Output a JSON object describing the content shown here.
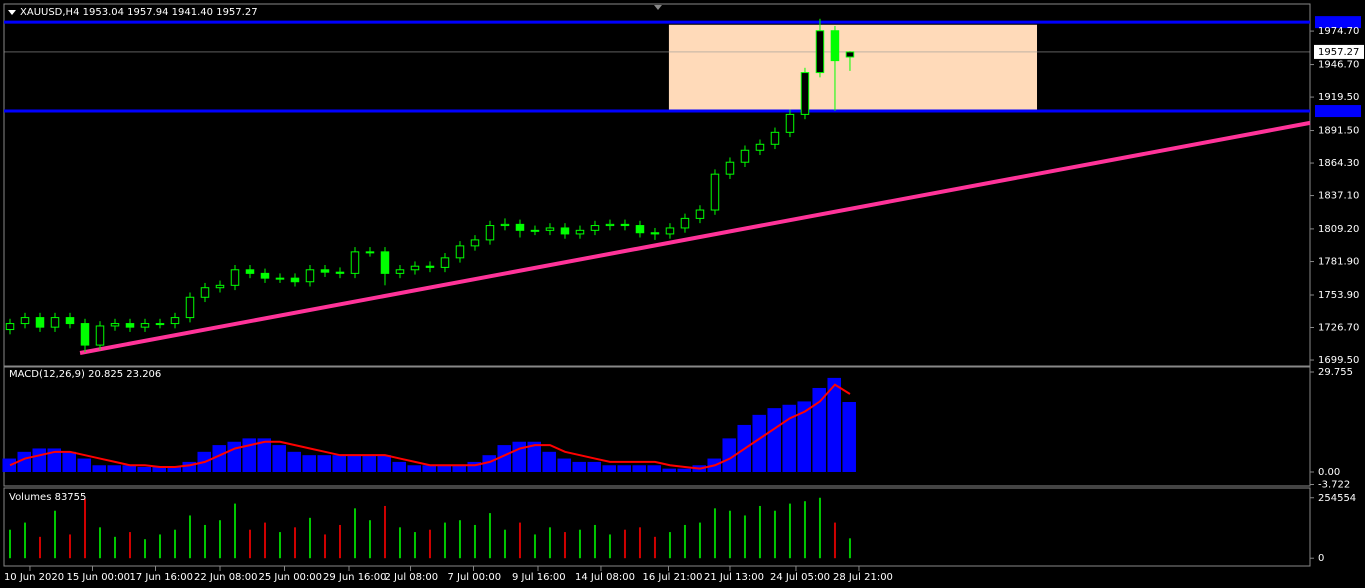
{
  "chart_data": [
    {
      "type": "candlestick",
      "title": "XAUUSD,H4  1953.04 1957.94 1941.40 1957.27",
      "color": "#00ff00",
      "open": [
        1725,
        1730,
        1735,
        1727,
        1735,
        1730,
        1712,
        1728,
        1730,
        1727,
        1730,
        1730,
        1735,
        1752,
        1760,
        1762,
        1775,
        1772,
        1768,
        1768,
        1765,
        1775,
        1773,
        1772,
        1790,
        1790,
        1772,
        1775,
        1778,
        1777,
        1785,
        1795,
        1800,
        1812,
        1813,
        1808,
        1808,
        1810,
        1805,
        1808,
        1812,
        1813,
        1812,
        1806,
        1805,
        1810,
        1818,
        1825,
        1855,
        1865,
        1875,
        1880,
        1890,
        1905,
        1940,
        1975,
        1953.04
      ],
      "high": [
        1734,
        1739,
        1739,
        1739,
        1739,
        1734,
        1732,
        1734,
        1734,
        1734,
        1734,
        1739,
        1756,
        1764,
        1766,
        1779,
        1779,
        1776,
        1772,
        1772,
        1779,
        1779,
        1777,
        1794,
        1794,
        1794,
        1779,
        1782,
        1782,
        1789,
        1799,
        1804,
        1816,
        1818,
        1817,
        1812,
        1814,
        1814,
        1812,
        1816,
        1817,
        1817,
        1816,
        1810,
        1814,
        1822,
        1829,
        1859,
        1869,
        1879,
        1884,
        1894,
        1909,
        1944,
        1985,
        1979,
        1957.94
      ],
      "low": [
        1721,
        1726,
        1723,
        1723,
        1726,
        1706,
        1708,
        1724,
        1723,
        1723,
        1726,
        1726,
        1731,
        1748,
        1756,
        1758,
        1768,
        1764,
        1764,
        1761,
        1761,
        1769,
        1768,
        1768,
        1786,
        1762,
        1768,
        1771,
        1773,
        1773,
        1781,
        1791,
        1796,
        1808,
        1802,
        1804,
        1804,
        1801,
        1801,
        1804,
        1808,
        1808,
        1802,
        1800,
        1801,
        1806,
        1814,
        1821,
        1851,
        1861,
        1871,
        1876,
        1886,
        1901,
        1936,
        1908,
        1941.4
      ],
      "close": [
        1730,
        1735,
        1727,
        1735,
        1730,
        1712,
        1728,
        1730,
        1727,
        1730,
        1730,
        1735,
        1752,
        1760,
        1762,
        1775,
        1772,
        1768,
        1768,
        1765,
        1775,
        1773,
        1772,
        1790,
        1790,
        1772,
        1775,
        1778,
        1777,
        1785,
        1795,
        1800,
        1812,
        1813,
        1808,
        1808,
        1810,
        1805,
        1808,
        1812,
        1813,
        1812,
        1806,
        1805,
        1810,
        1818,
        1825,
        1855,
        1865,
        1875,
        1880,
        1890,
        1905,
        1940,
        1975,
        1950,
        1957.27
      ],
      "xlim": [
        -0.4,
        86.67
      ],
      "ylim": [
        1694.5,
        1989
      ],
      "xticks": [
        {
          "value": 1.33,
          "label": "10 Jun 2020"
        },
        {
          "value": 5.5,
          "label": "15 Jun 00:00"
        },
        {
          "value": 9.7,
          "label": "17 Jun 16:00"
        },
        {
          "value": 14,
          "label": "22 Jun 08:00"
        },
        {
          "value": 18.3,
          "label": "25 Jun 00:00"
        },
        {
          "value": 22.6,
          "label": "29 Jun 16:00"
        },
        {
          "value": 26.7,
          "label": "2 Jul 08:00"
        },
        {
          "value": 30.9,
          "label": "7 Jul 00:00"
        },
        {
          "value": 35.2,
          "label": "9 Jul 16:00"
        },
        {
          "value": 39.4,
          "label": "14 Jul 08:00"
        },
        {
          "value": 43.9,
          "label": "16 Jul 21:00"
        },
        {
          "value": 48,
          "label": "21 Jul 13:00"
        },
        {
          "value": 52.4,
          "label": "24 Jul 05:00"
        },
        {
          "value": 56.6,
          "label": "28 Jul 21:00"
        }
      ],
      "yticks": [
        {
          "value": 1699.5,
          "label": "1699.50"
        },
        {
          "value": 1726.7,
          "label": "1726.70"
        },
        {
          "value": 1753.9,
          "label": "1753.90"
        },
        {
          "value": 1781.9,
          "label": "1781.90"
        },
        {
          "value": 1809.2,
          "label": "1809.20"
        },
        {
          "value": 1837.1,
          "label": "1837.10"
        },
        {
          "value": 1864.3,
          "label": "1864.30"
        },
        {
          "value": 1891.5,
          "label": "1891.50"
        },
        {
          "value": 1919.5,
          "label": "1919.50"
        },
        {
          "value": 1946.7,
          "label": "1946.70"
        },
        {
          "value": 1974.7,
          "label": "1974.70"
        }
      ],
      "levels": [
        1982.2,
        1907.8
      ],
      "level_color": "#0000ff",
      "zone": {
        "x": [
          43.93,
          68.47
        ],
        "y": [
          1908.6,
          1980
        ],
        "color": "#ffdab9"
      },
      "trendline": {
        "x": [
          4.67,
          86.67
        ],
        "y": [
          1705.4,
          1897.9
        ],
        "color": "#ff3399"
      }
    },
    {
      "type": "macd",
      "title": "MACD(12,26,9) 20.825 23.206",
      "series": [
        {
          "color": "#0000ff",
          "values": [
            4,
            6,
            7,
            7,
            6,
            4,
            2,
            2,
            2,
            1.5,
            1.5,
            1.5,
            3,
            6,
            8,
            9,
            10,
            10,
            8,
            6,
            5,
            5,
            5,
            5,
            5,
            5,
            3,
            2,
            2,
            2,
            2,
            3,
            5,
            8,
            9,
            9,
            6,
            4,
            3,
            3,
            2,
            2,
            2,
            2,
            1,
            1,
            2,
            4,
            10,
            14,
            17,
            19,
            20,
            21,
            25,
            28,
            20.825
          ]
        },
        {
          "color": "#ff0000",
          "values": [
            2,
            4,
            5,
            6,
            6,
            5,
            4,
            3,
            2,
            2,
            1.5,
            1.5,
            2,
            3,
            5,
            7,
            8,
            9,
            9,
            8,
            7,
            6,
            5,
            5,
            5,
            5,
            4,
            3,
            2,
            2,
            2,
            2,
            3,
            5,
            7,
            8,
            8,
            6,
            5,
            4,
            3,
            3,
            3,
            3,
            2,
            1.5,
            1,
            2,
            4,
            7,
            10,
            13,
            16,
            18,
            21,
            26,
            23.206
          ]
        }
      ],
      "ylim": [
        -4.17,
        31.24
      ],
      "yticks": [
        29.755,
        {
          "value": 0,
          "label": "0.00"
        },
        -3.722
      ]
    },
    {
      "type": "volume",
      "title": "Volumes 83755",
      "up_color": "#00c800",
      "down_color": "#d00000",
      "values": [
        120000,
        150000,
        90000,
        200000,
        100000,
        250000,
        130000,
        90000,
        110000,
        80000,
        100000,
        120000,
        180000,
        140000,
        160000,
        230000,
        120000,
        150000,
        110000,
        130000,
        170000,
        100000,
        140000,
        210000,
        160000,
        220000,
        130000,
        110000,
        120000,
        150000,
        160000,
        140000,
        190000,
        120000,
        150000,
        100000,
        130000,
        110000,
        120000,
        140000,
        100000,
        120000,
        130000,
        90000,
        110000,
        140000,
        150000,
        210000,
        200000,
        180000,
        220000,
        200000,
        230000,
        240000,
        254554,
        150000,
        83755
      ],
      "ylim": [
        -32845,
        295612
      ],
      "yticks": [
        254554,
        0
      ]
    }
  ]
}
